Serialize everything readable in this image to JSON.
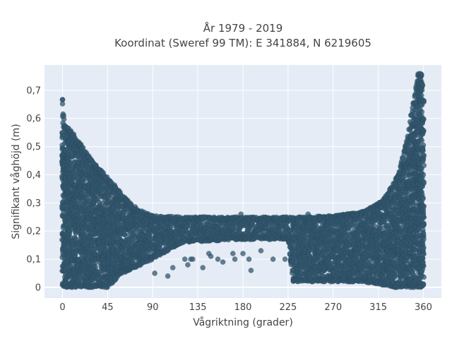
{
  "chart_data": {
    "type": "scatter",
    "title": "År 1979 - 2019",
    "subtitle": "Koordinat (Sweref 99 TM): E 341884, N 6219605",
    "xlabel": "Vågriktning (grader)",
    "ylabel": "Signifikant våghöjd (m)",
    "xlim": [
      -18,
      378
    ],
    "ylim": [
      -0.038,
      0.79
    ],
    "xticks": [
      0,
      45,
      90,
      135,
      180,
      225,
      270,
      315,
      360
    ],
    "xtick_labels": [
      "0",
      "45",
      "90",
      "135",
      "180",
      "225",
      "270",
      "315",
      "360"
    ],
    "yticks": [
      0,
      0.1,
      0.2,
      0.3,
      0.4,
      0.5,
      0.6,
      0.7
    ],
    "ytick_labels": [
      "0",
      "0,1",
      "0,2",
      "0,3",
      "0,4",
      "0,5",
      "0,6",
      "0,7"
    ],
    "grid": true,
    "legend": "none",
    "colors": {
      "plot_background": "#e5ecf6",
      "grid": "#ffffff",
      "marker": "#33576e",
      "marker_edge": "#1f3d50",
      "text": "#444444"
    },
    "envelope": {
      "description_units": "direction in degrees, height in meters",
      "upper": [
        {
          "x": 0,
          "y": 0.67
        },
        {
          "x": 2,
          "y": 0.58
        },
        {
          "x": 10,
          "y": 0.55
        },
        {
          "x": 20,
          "y": 0.5
        },
        {
          "x": 30,
          "y": 0.45
        },
        {
          "x": 40,
          "y": 0.41
        },
        {
          "x": 50,
          "y": 0.37
        },
        {
          "x": 60,
          "y": 0.33
        },
        {
          "x": 70,
          "y": 0.29
        },
        {
          "x": 80,
          "y": 0.27
        },
        {
          "x": 90,
          "y": 0.255
        },
        {
          "x": 120,
          "y": 0.25
        },
        {
          "x": 180,
          "y": 0.25
        },
        {
          "x": 240,
          "y": 0.25
        },
        {
          "x": 270,
          "y": 0.255
        },
        {
          "x": 300,
          "y": 0.27
        },
        {
          "x": 320,
          "y": 0.31
        },
        {
          "x": 335,
          "y": 0.4
        },
        {
          "x": 345,
          "y": 0.55
        },
        {
          "x": 352,
          "y": 0.7
        },
        {
          "x": 355,
          "y": 0.76
        },
        {
          "x": 358,
          "y": 0.76
        },
        {
          "x": 360,
          "y": 0.67
        }
      ],
      "lower": [
        {
          "x": 0,
          "y": 0.0
        },
        {
          "x": 45,
          "y": 0.0
        },
        {
          "x": 60,
          "y": 0.05
        },
        {
          "x": 90,
          "y": 0.1
        },
        {
          "x": 120,
          "y": 0.16
        },
        {
          "x": 180,
          "y": 0.17
        },
        {
          "x": 225,
          "y": 0.17
        },
        {
          "x": 230,
          "y": 0.02
        },
        {
          "x": 300,
          "y": 0.02
        },
        {
          "x": 330,
          "y": 0.0
        },
        {
          "x": 360,
          "y": 0.0
        }
      ]
    },
    "outliers": [
      {
        "x": 92,
        "y": 0.05
      },
      {
        "x": 105,
        "y": 0.04
      },
      {
        "x": 110,
        "y": 0.07
      },
      {
        "x": 122,
        "y": 0.1
      },
      {
        "x": 125,
        "y": 0.08
      },
      {
        "x": 128,
        "y": 0.1
      },
      {
        "x": 130,
        "y": 0.1
      },
      {
        "x": 140,
        "y": 0.07
      },
      {
        "x": 140,
        "y": 0.25
      },
      {
        "x": 146,
        "y": 0.12
      },
      {
        "x": 148,
        "y": 0.11
      },
      {
        "x": 155,
        "y": 0.1
      },
      {
        "x": 160,
        "y": 0.09
      },
      {
        "x": 170,
        "y": 0.12
      },
      {
        "x": 172,
        "y": 0.1
      },
      {
        "x": 178,
        "y": 0.26
      },
      {
        "x": 180,
        "y": 0.12
      },
      {
        "x": 186,
        "y": 0.1
      },
      {
        "x": 188,
        "y": 0.06
      },
      {
        "x": 198,
        "y": 0.13
      },
      {
        "x": 210,
        "y": 0.1
      },
      {
        "x": 222,
        "y": 0.1
      },
      {
        "x": 245,
        "y": 0.26
      },
      {
        "x": 250,
        "y": 0.14
      }
    ]
  }
}
